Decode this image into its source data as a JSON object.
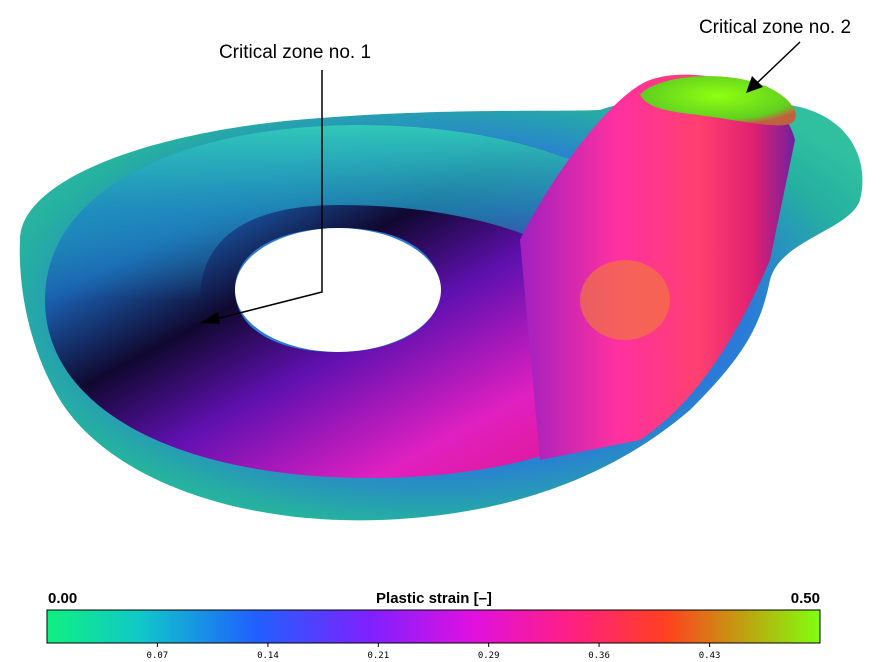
{
  "annotations": [
    {
      "label": "Critical zone no. 1"
    },
    {
      "label": "Critical zone no. 2"
    }
  ],
  "colorbar": {
    "title": "Plastic strain [–]",
    "min": {
      "value": 0,
      "label": "0.00"
    },
    "max": {
      "value": 0.5,
      "label": "0.50"
    },
    "ticks": [
      {
        "value": 0.0714,
        "label": "0.07"
      },
      {
        "value": 0.1429,
        "label": "0.14"
      },
      {
        "value": 0.2143,
        "label": "0.21"
      },
      {
        "value": 0.2857,
        "label": "0.29"
      },
      {
        "value": 0.3571,
        "label": "0.36"
      },
      {
        "value": 0.4286,
        "label": "0.43"
      }
    ]
  }
}
